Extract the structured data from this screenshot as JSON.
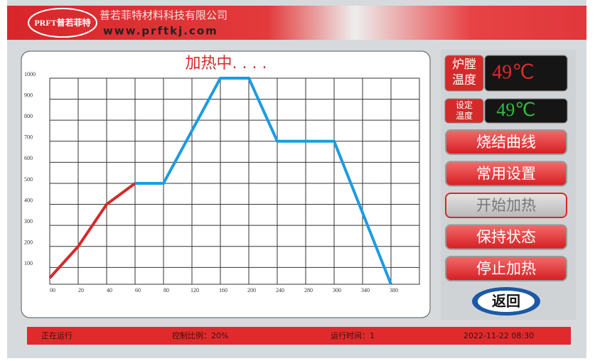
{
  "header": {
    "logo": "PRFT普若菲特",
    "company": "普若菲特材料科技有限公司",
    "url": "www.prftkj.com"
  },
  "chart_data": {
    "type": "line",
    "title": "加热中. . . .",
    "categories": [
      "00",
      "20",
      "40",
      "60",
      "80",
      "120",
      "160",
      "200",
      "240",
      "280",
      "300",
      "340",
      "380"
    ],
    "series": [
      {
        "color": "#d42a2a",
        "values": [
          50,
          200,
          400,
          500,
          null,
          null,
          null,
          null,
          null,
          null,
          null,
          null,
          null
        ]
      },
      {
        "color": "#1c9be2",
        "values": [
          null,
          null,
          null,
          500,
          500,
          750,
          1000,
          1000,
          700,
          700,
          700,
          360,
          20
        ]
      }
    ],
    "ylim": [
      20,
      1000
    ],
    "yticks": [
      100,
      200,
      300,
      400,
      500,
      600,
      700,
      800,
      900,
      1000
    ],
    "grid": true
  },
  "panel": {
    "furnace_label": "炉膛温度",
    "furnace_temp": "49℃",
    "set_label": "设定温度",
    "set_temp": "49℃"
  },
  "buttons": [
    "烧结曲线",
    "常用设置",
    "开始加热",
    "保持状态",
    "停止加热"
  ],
  "back": "返回",
  "status": [
    "正在运行",
    "控制比例：20%",
    "运行时间：1",
    "2022-11-22 08:30"
  ]
}
